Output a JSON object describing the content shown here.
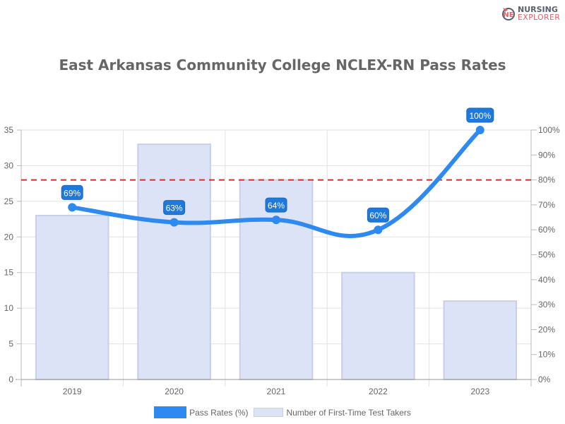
{
  "logo": {
    "line1": "NURSING",
    "line2": "EXPLORER"
  },
  "title": "East Arkansas Community College NCLEX-RN Pass Rates",
  "legend": [
    {
      "label": "Pass Rates (%)",
      "color": "#2e8af0"
    },
    {
      "label": "Number of First-Time Test Takers",
      "color": "#dce3f7"
    }
  ],
  "colors": {
    "line": "#2e8af0",
    "label_bg": "#1f78dc",
    "bar_fill": "#dce3f7",
    "bar_border": "#c8cfe6",
    "benchmark": "#e8262a",
    "grid": "#e2e2e2",
    "axis_text": "#666666"
  },
  "chart_data": {
    "type": "bar+line",
    "title": "East Arkansas Community College NCLEX-RN Pass Rates",
    "categories": [
      "2019",
      "2020",
      "2021",
      "2022",
      "2023"
    ],
    "series": [
      {
        "name": "Number of First-Time Test Takers",
        "type": "bar",
        "axis": "left",
        "values": [
          23,
          33,
          28,
          15,
          11
        ]
      },
      {
        "name": "Pass Rates (%)",
        "type": "line",
        "axis": "right",
        "values": [
          69,
          63,
          64,
          60,
          100
        ],
        "labels": [
          "69%",
          "63%",
          "64%",
          "60%",
          "100%"
        ]
      }
    ],
    "left_axis": {
      "ylim": [
        0,
        35
      ],
      "ticks": [
        "0",
        "5",
        "10",
        "15",
        "20",
        "25",
        "30",
        "35"
      ]
    },
    "right_axis": {
      "ylim": [
        0,
        100
      ],
      "ticks": [
        "0%",
        "10%",
        "20%",
        "30%",
        "40%",
        "50%",
        "60%",
        "70%",
        "80%",
        "90%",
        "100%"
      ]
    },
    "annotations": [
      {
        "type": "horizontal-dashed-line",
        "axis": "right",
        "value": 80,
        "color": "#e8262a"
      }
    ],
    "grid": true,
    "legend_position": "bottom"
  }
}
